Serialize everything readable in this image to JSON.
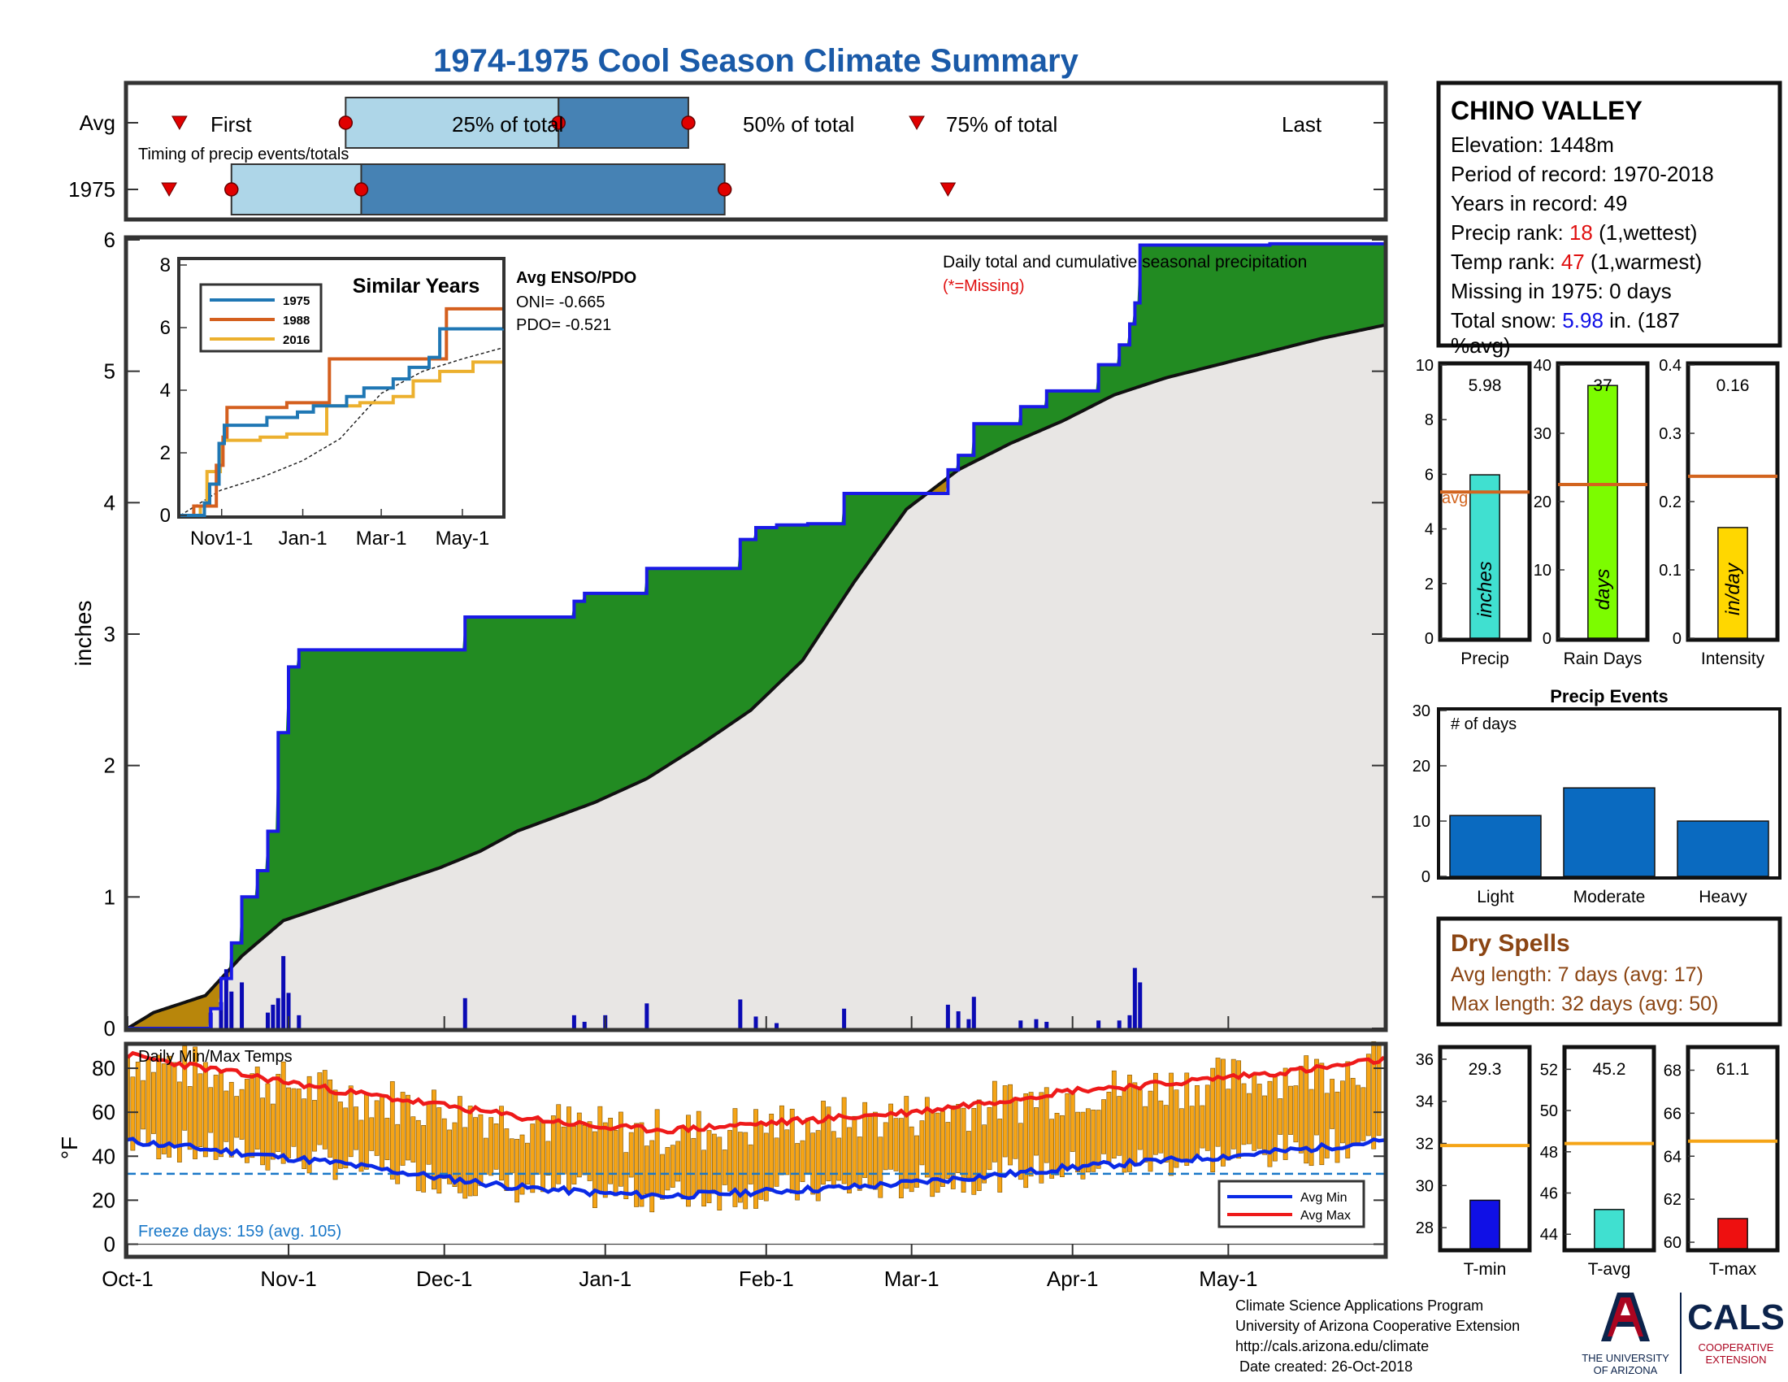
{
  "title": "1974-1975 Cool Season Climate Summary",
  "colors": {
    "title": "#1a5aa8",
    "q_light": "#aed6e8",
    "q_dark": "#4682b4",
    "marker": "#e00000",
    "green": "#228b22",
    "cumline": "#1a1ae6",
    "avgfill": "#e8e6e4",
    "early": "#b8860b",
    "bars": "#0a0ab4",
    "temp_orange": "#f5a416",
    "avg_min": "#0a2ae6",
    "avg_max": "#ee1a1a",
    "freeze": "#1a78c8",
    "red_text": "#e01010",
    "blue_text": "#1010e6",
    "brown_text": "#8b4513",
    "avg_line": "#d2641e",
    "c1975": "#1f77b4",
    "c1988": "#d45f1e",
    "c2016": "#ecb02e",
    "precip_bar": "#40e0d0",
    "rain_bar": "#7cfc00",
    "int_bar": "#ffd700",
    "event_bar": "#0a6ac0",
    "tavg_line": "#f5a416",
    "tmin_bar": "#1010e6",
    "tavg_bar": "#40e0d0",
    "tmax_bar": "#ee1010",
    "ua_blue": "#0c234b",
    "ua_red": "#ab0520"
  },
  "timing": {
    "row_avg": "Avg",
    "row_year": "1975",
    "label_first": "First",
    "label_25": "25% of total",
    "label_50": "50% of total",
    "label_75": "75% of total",
    "label_last": "Last",
    "caption": "Timing of precip events/totals",
    "avg_days": {
      "first": 10,
      "p25": 42,
      "p50": 83,
      "p75": 108,
      "last": 152
    },
    "year_days": {
      "first": 8,
      "p25": 20,
      "p50": 45,
      "p75": 115,
      "last": 158
    }
  },
  "main_chart": {
    "ylabel": "inches",
    "caption": "Daily total and cumulative seasonal precipitation",
    "missing_note": "(*=Missing)",
    "yticks": [
      "0",
      "1",
      "2",
      "3",
      "4",
      "5",
      "6"
    ],
    "ylim": [
      0,
      6.0
    ],
    "xticks": [
      "Oct-1",
      "Nov-1",
      "Dec-1",
      "Jan-1",
      "Feb-1",
      "Mar-1",
      "Apr-1",
      "May-1"
    ],
    "xtick_days": [
      0,
      31,
      61,
      92,
      123,
      151,
      182,
      212
    ],
    "season_days": 242,
    "cumulative_1975": [
      [
        0,
        0
      ],
      [
        16,
        0
      ],
      [
        16,
        0.15
      ],
      [
        18,
        0.15
      ],
      [
        18,
        0.38
      ],
      [
        20,
        0.38
      ],
      [
        20,
        0.65
      ],
      [
        22,
        0.65
      ],
      [
        22,
        1.0
      ],
      [
        25,
        1.0
      ],
      [
        25,
        1.2
      ],
      [
        27,
        1.2
      ],
      [
        27,
        1.5
      ],
      [
        29,
        1.5
      ],
      [
        29,
        2.25
      ],
      [
        31,
        2.25
      ],
      [
        31,
        2.75
      ],
      [
        33,
        2.75
      ],
      [
        33,
        2.88
      ],
      [
        65,
        2.88
      ],
      [
        65,
        3.13
      ],
      [
        86,
        3.13
      ],
      [
        86,
        3.25
      ],
      [
        88,
        3.25
      ],
      [
        88,
        3.31
      ],
      [
        100,
        3.31
      ],
      [
        100,
        3.5
      ],
      [
        118,
        3.5
      ],
      [
        118,
        3.72
      ],
      [
        121,
        3.72
      ],
      [
        121,
        3.81
      ],
      [
        125,
        3.81
      ],
      [
        125,
        3.83
      ],
      [
        131,
        3.83
      ],
      [
        131,
        3.84
      ],
      [
        138,
        3.84
      ],
      [
        138,
        4.07
      ],
      [
        158,
        4.07
      ],
      [
        158,
        4.25
      ],
      [
        160,
        4.25
      ],
      [
        160,
        4.36
      ],
      [
        163,
        4.36
      ],
      [
        163,
        4.6
      ],
      [
        172,
        4.6
      ],
      [
        172,
        4.73
      ],
      [
        177,
        4.73
      ],
      [
        177,
        4.85
      ],
      [
        187,
        4.85
      ],
      [
        187,
        5.05
      ],
      [
        191,
        5.05
      ],
      [
        191,
        5.2
      ],
      [
        193,
        5.2
      ],
      [
        193,
        5.36
      ],
      [
        194,
        5.36
      ],
      [
        194,
        5.52
      ],
      [
        195,
        5.52
      ],
      [
        195,
        5.96
      ],
      [
        220,
        5.96
      ],
      [
        220,
        5.97
      ],
      [
        242,
        5.97
      ]
    ],
    "cumulative_avg": [
      [
        0,
        0
      ],
      [
        5,
        0.12
      ],
      [
        15,
        0.25
      ],
      [
        22,
        0.55
      ],
      [
        30,
        0.82
      ],
      [
        45,
        1.02
      ],
      [
        60,
        1.22
      ],
      [
        68,
        1.35
      ],
      [
        75,
        1.5
      ],
      [
        90,
        1.72
      ],
      [
        100,
        1.9
      ],
      [
        110,
        2.15
      ],
      [
        120,
        2.42
      ],
      [
        130,
        2.8
      ],
      [
        140,
        3.4
      ],
      [
        150,
        3.95
      ],
      [
        160,
        4.25
      ],
      [
        170,
        4.45
      ],
      [
        180,
        4.62
      ],
      [
        190,
        4.82
      ],
      [
        200,
        4.95
      ],
      [
        210,
        5.05
      ],
      [
        220,
        5.15
      ],
      [
        230,
        5.25
      ],
      [
        242,
        5.35
      ]
    ],
    "daily_bars": [
      [
        16,
        0.12
      ],
      [
        18,
        0.2
      ],
      [
        19,
        0.45
      ],
      [
        20,
        0.28
      ],
      [
        22,
        0.35
      ],
      [
        27,
        0.12
      ],
      [
        28,
        0.18
      ],
      [
        29,
        0.23
      ],
      [
        30,
        0.55
      ],
      [
        31,
        0.27
      ],
      [
        33,
        0.1
      ],
      [
        65,
        0.23
      ],
      [
        86,
        0.1
      ],
      [
        88,
        0.05
      ],
      [
        92,
        0.1
      ],
      [
        100,
        0.19
      ],
      [
        118,
        0.22
      ],
      [
        121,
        0.09
      ],
      [
        125,
        0.04
      ],
      [
        138,
        0.15
      ],
      [
        158,
        0.18
      ],
      [
        160,
        0.13
      ],
      [
        162,
        0.07
      ],
      [
        163,
        0.24
      ],
      [
        172,
        0.06
      ],
      [
        175,
        0.07
      ],
      [
        177,
        0.05
      ],
      [
        187,
        0.06
      ],
      [
        191,
        0.06
      ],
      [
        193,
        0.1
      ],
      [
        194,
        0.46
      ],
      [
        195,
        0.35
      ]
    ]
  },
  "inset": {
    "title": "Similar Years",
    "yticks": [
      "0",
      "2",
      "4",
      "6",
      "8"
    ],
    "xticks": [
      "Nov1-1",
      "Jan-1",
      "Mar-1",
      "May-1"
    ],
    "xtick_days": [
      31,
      92,
      151,
      212
    ],
    "legend": [
      "1975",
      "1988",
      "2016"
    ],
    "ylim": [
      0,
      8
    ],
    "series_1975": [
      [
        0,
        0
      ],
      [
        16,
        0
      ],
      [
        18,
        0.4
      ],
      [
        22,
        1.0
      ],
      [
        29,
        2.3
      ],
      [
        33,
        2.88
      ],
      [
        65,
        3.13
      ],
      [
        88,
        3.3
      ],
      [
        100,
        3.5
      ],
      [
        125,
        3.8
      ],
      [
        138,
        4.07
      ],
      [
        160,
        4.36
      ],
      [
        172,
        4.73
      ],
      [
        187,
        5.05
      ],
      [
        195,
        5.96
      ],
      [
        242,
        5.97
      ]
    ],
    "series_1988": [
      [
        0,
        0
      ],
      [
        10,
        0.3
      ],
      [
        25,
        0.3
      ],
      [
        27,
        1.6
      ],
      [
        32,
        2.5
      ],
      [
        35,
        3.45
      ],
      [
        75,
        3.45
      ],
      [
        80,
        3.6
      ],
      [
        108,
        3.6
      ],
      [
        112,
        5.0
      ],
      [
        195,
        5.0
      ],
      [
        200,
        6.6
      ],
      [
        242,
        6.6
      ]
    ],
    "series_2016": [
      [
        0,
        0
      ],
      [
        15,
        0.3
      ],
      [
        20,
        1.4
      ],
      [
        30,
        2.3
      ],
      [
        32,
        2.4
      ],
      [
        60,
        2.5
      ],
      [
        80,
        2.6
      ],
      [
        110,
        3.5
      ],
      [
        135,
        3.6
      ],
      [
        160,
        3.8
      ],
      [
        175,
        4.3
      ],
      [
        195,
        4.6
      ],
      [
        220,
        4.9
      ],
      [
        242,
        4.9
      ]
    ],
    "series_avg": [
      [
        0,
        0
      ],
      [
        30,
        0.8
      ],
      [
        60,
        1.2
      ],
      [
        92,
        1.75
      ],
      [
        120,
        2.45
      ],
      [
        151,
        3.9
      ],
      [
        182,
        4.6
      ],
      [
        212,
        5.0
      ],
      [
        242,
        5.35
      ]
    ]
  },
  "enso": {
    "title": "Avg ENSO/PDO",
    "oni": "ONI= -0.665",
    "pdo": "PDO= -0.521"
  },
  "temp_chart": {
    "ylabel": "°F",
    "caption": "Daily Min/Max Temps",
    "yticks": [
      "0",
      "20",
      "40",
      "60",
      "80"
    ],
    "ylim": [
      -5,
      90
    ],
    "freeze_line": 32,
    "freeze_text": "Freeze days: 159 (avg. 105)",
    "legend": [
      "Avg Min",
      "Avg Max"
    ],
    "avg_max": [
      [
        0,
        86
      ],
      [
        20,
        78
      ],
      [
        40,
        70
      ],
      [
        61,
        63
      ],
      [
        75,
        58
      ],
      [
        92,
        53
      ],
      [
        105,
        52
      ],
      [
        123,
        55
      ],
      [
        140,
        58
      ],
      [
        151,
        60
      ],
      [
        170,
        66
      ],
      [
        182,
        70
      ],
      [
        200,
        73
      ],
      [
        212,
        76
      ],
      [
        230,
        80
      ],
      [
        242,
        84
      ]
    ],
    "avg_min": [
      [
        0,
        47
      ],
      [
        20,
        42
      ],
      [
        40,
        37
      ],
      [
        61,
        30
      ],
      [
        75,
        26
      ],
      [
        92,
        23
      ],
      [
        105,
        22
      ],
      [
        123,
        24
      ],
      [
        140,
        26
      ],
      [
        151,
        28
      ],
      [
        170,
        32
      ],
      [
        182,
        35
      ],
      [
        200,
        38
      ],
      [
        212,
        40
      ],
      [
        230,
        44
      ],
      [
        242,
        47
      ]
    ]
  },
  "station": {
    "name": "CHINO VALLEY",
    "elevation": "Elevation: 1448m",
    "period": "Period of record: 1970-2018",
    "years": "Years in record: 49",
    "precip_rank_label": "Precip rank: ",
    "precip_rank_val": "18",
    "precip_rank_note": " (1,wettest)",
    "temp_rank_label": "Temp rank: ",
    "temp_rank_val": "47",
    "temp_rank_note": " (1,warmest)",
    "missing": "Missing in 1975: 0 days",
    "snow_label": "Total snow: ",
    "snow_val": "5.98",
    "snow_note": " in. (187",
    "snow_note2": "%avg)"
  },
  "mini_precip": {
    "value": "5.98",
    "inner": "inches",
    "xlabel": "Precip",
    "avg_label": "avg",
    "yticks": [
      "0",
      "2",
      "4",
      "6",
      "8",
      "10"
    ],
    "ylim": [
      0,
      10
    ],
    "bar": 5.98,
    "avg": 5.35
  },
  "mini_rain": {
    "value": "37",
    "inner": "days",
    "xlabel": "Rain Days",
    "yticks": [
      "0",
      "10",
      "20",
      "30",
      "40"
    ],
    "ylim": [
      0,
      40
    ],
    "bar": 37,
    "avg": 22.5
  },
  "mini_intensity": {
    "value": "0.16",
    "inner": "in/day",
    "xlabel": "Intensity",
    "yticks": [
      "0",
      "0.1",
      "0.2",
      "0.3",
      "0.4"
    ],
    "ylim": [
      0,
      0.4
    ],
    "bar": 0.162,
    "avg": 0.237
  },
  "events": {
    "title": "Precip Events",
    "inner": "# of days",
    "yticks": [
      "0",
      "10",
      "20",
      "30"
    ],
    "ylim": [
      0,
      30
    ],
    "categories": [
      "Light",
      "Moderate",
      "Heavy"
    ],
    "values": [
      11,
      16,
      10
    ]
  },
  "dry_spells": {
    "title": "Dry Spells",
    "avg_length": "Avg length: 7 days (avg: 17)",
    "max_length": "Max length: 32 days (avg: 50)"
  },
  "mini_tmin": {
    "value": "29.3",
    "xlabel": "T-min",
    "yticks": [
      "28",
      "30",
      "32",
      "34",
      "36"
    ],
    "ylim": [
      27,
      36.5
    ],
    "bar": 29.3,
    "avg": 31.9
  },
  "mini_tavg": {
    "value": "45.2",
    "xlabel": "T-avg",
    "yticks": [
      "44",
      "46",
      "48",
      "50",
      "52"
    ],
    "ylim": [
      43.3,
      53
    ],
    "bar": 45.2,
    "avg": 48.4
  },
  "mini_tmax": {
    "value": "61.1",
    "xlabel": "T-max",
    "yticks": [
      "60",
      "62",
      "64",
      "66",
      "68"
    ],
    "ylim": [
      59.7,
      69
    ],
    "bar": 61.1,
    "avg": 64.7
  },
  "footer": {
    "line1": "Climate Science Applications Program",
    "line2": "University of Arizona Cooperative Extension",
    "line3": "http://cals.arizona.edu/climate",
    "line4": " Date created: 26-Oct-2018",
    "ua1": "THE UNIVERSITY",
    "ua2": "OF ARIZONA",
    "cals": "CALS",
    "coop1": "COOPERATIVE",
    "coop2": "EXTENSION"
  }
}
